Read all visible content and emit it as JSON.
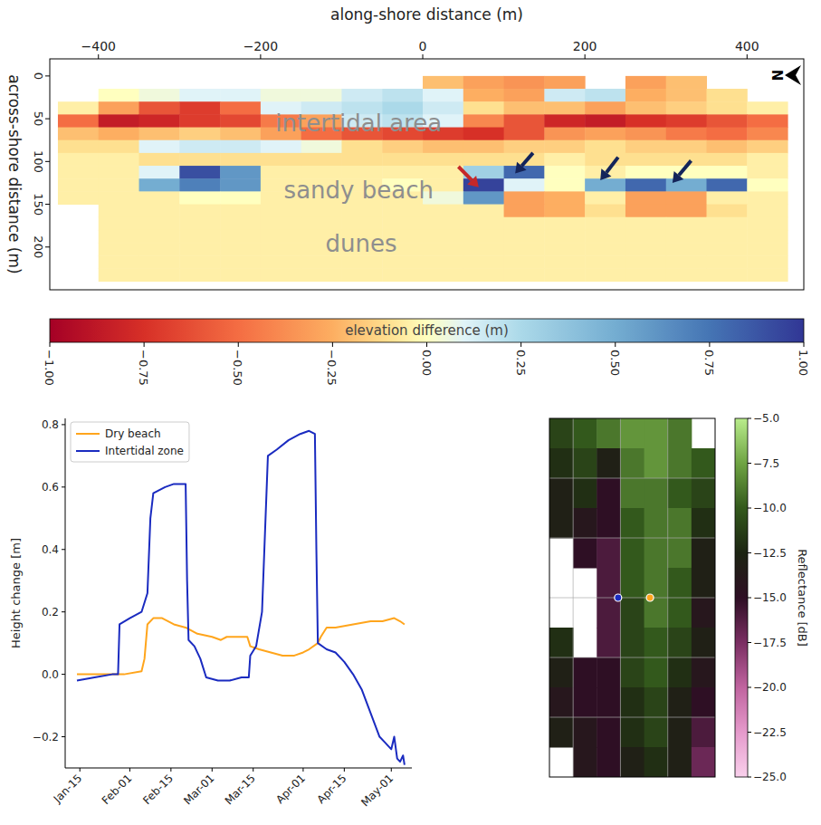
{
  "chart_data": [
    {
      "type": "map",
      "xlabel": "along-shore distance (m)",
      "ylabel": "across-shore distance (m)",
      "xlim": [
        -460,
        470
      ],
      "ylim": [
        -20,
        250
      ],
      "xticks": [
        {
          "value": -400,
          "label": "−400"
        },
        {
          "value": -200,
          "label": "−200"
        },
        0,
        200,
        400
      ],
      "yticks": [
        0,
        50,
        100,
        150,
        200
      ],
      "annotations": [
        "intertidal area",
        "sandy beach",
        "dunes"
      ],
      "north": "N",
      "cells": {
        "x_edges": [
          -450,
          -400,
          -350,
          -300,
          -250,
          -200,
          -150,
          -100,
          -50,
          0,
          50,
          100,
          150,
          200,
          250,
          300,
          350,
          400,
          450
        ],
        "y_edges": [
          0,
          15,
          30,
          45,
          60,
          75,
          90,
          105,
          120,
          135,
          150,
          165,
          180,
          195,
          210,
          225,
          240
        ],
        "values": [
          [
            null,
            null,
            null,
            null,
            null,
            null,
            null,
            null,
            null,
            -0.2,
            -0.3,
            -0.35,
            -0.3,
            null,
            -0.3,
            -0.2,
            null,
            null
          ],
          [
            null,
            0.0,
            0.05,
            0.1,
            0.1,
            0.05,
            0.05,
            0.15,
            0.2,
            0.1,
            -0.25,
            -0.3,
            0.15,
            0.2,
            -0.25,
            -0.2,
            -0.1,
            null
          ],
          [
            -0.05,
            -0.3,
            -0.6,
            -0.7,
            -0.5,
            0.1,
            0.15,
            0.2,
            0.25,
            0.15,
            -0.1,
            -0.2,
            -0.2,
            -0.3,
            -0.2,
            -0.15,
            -0.1,
            -0.05
          ],
          [
            -0.5,
            -0.85,
            -0.8,
            -0.7,
            -0.65,
            -0.45,
            -0.3,
            0.15,
            0.2,
            0.1,
            -0.4,
            -0.6,
            -0.8,
            -0.85,
            -0.75,
            -0.7,
            -0.6,
            -0.5
          ],
          [
            -0.2,
            -0.25,
            -0.2,
            -0.15,
            -0.2,
            -0.3,
            -0.5,
            -0.6,
            -0.65,
            -0.7,
            -0.75,
            -0.6,
            -0.35,
            -0.3,
            -0.35,
            -0.45,
            -0.5,
            -0.4
          ],
          [
            -0.1,
            -0.1,
            0.1,
            0.15,
            0.15,
            0.1,
            0.05,
            -0.1,
            -0.15,
            -0.2,
            -0.2,
            -0.15,
            -0.15,
            -0.1,
            -0.15,
            -0.15,
            -0.2,
            -0.15
          ],
          [
            -0.05,
            -0.05,
            -0.1,
            -0.1,
            -0.1,
            -0.1,
            -0.1,
            -0.1,
            -0.1,
            -0.1,
            -0.1,
            -0.1,
            -0.05,
            -0.1,
            -0.1,
            -0.1,
            -0.1,
            -0.05
          ],
          [
            -0.05,
            -0.05,
            0.1,
            0.9,
            0.6,
            -0.05,
            -0.05,
            -0.05,
            -0.05,
            -0.05,
            0.3,
            0.8,
            0.0,
            -0.05,
            0.0,
            0.0,
            0.0,
            -0.05
          ],
          [
            -0.05,
            -0.05,
            0.5,
            0.7,
            0.6,
            -0.05,
            -0.05,
            -0.05,
            0.0,
            -0.05,
            0.95,
            0.1,
            0.0,
            0.5,
            0.8,
            0.5,
            0.8,
            0.0
          ],
          [
            -0.05,
            -0.05,
            -0.05,
            0.0,
            0.0,
            -0.05,
            -0.05,
            -0.05,
            -0.05,
            0.05,
            0.6,
            -0.3,
            -0.25,
            -0.05,
            -0.3,
            -0.3,
            -0.05,
            -0.05
          ],
          [
            null,
            -0.05,
            -0.05,
            -0.05,
            -0.05,
            -0.05,
            -0.05,
            -0.05,
            -0.05,
            -0.05,
            -0.05,
            -0.3,
            -0.25,
            -0.1,
            -0.3,
            -0.3,
            -0.1,
            -0.05
          ],
          [
            null,
            -0.05,
            -0.05,
            -0.05,
            -0.05,
            -0.05,
            -0.05,
            -0.05,
            -0.05,
            -0.05,
            -0.05,
            -0.05,
            -0.05,
            -0.05,
            -0.05,
            -0.05,
            -0.05,
            -0.05
          ],
          [
            null,
            -0.05,
            -0.05,
            -0.05,
            -0.05,
            -0.05,
            -0.05,
            -0.05,
            -0.05,
            -0.05,
            -0.05,
            -0.05,
            -0.05,
            -0.05,
            -0.05,
            -0.05,
            -0.05,
            -0.05
          ],
          [
            null,
            -0.05,
            -0.05,
            -0.05,
            -0.05,
            -0.05,
            -0.05,
            -0.05,
            -0.05,
            -0.05,
            -0.05,
            -0.05,
            -0.05,
            -0.05,
            -0.05,
            -0.05,
            -0.05,
            -0.05
          ],
          [
            null,
            -0.05,
            -0.05,
            -0.05,
            -0.05,
            -0.05,
            -0.05,
            -0.05,
            -0.05,
            -0.05,
            -0.05,
            -0.05,
            -0.05,
            -0.05,
            -0.05,
            -0.05,
            -0.05,
            -0.05
          ],
          [
            null,
            -0.05,
            -0.05,
            -0.05,
            -0.05,
            -0.05,
            -0.05,
            -0.05,
            -0.05,
            -0.05,
            -0.05,
            -0.05,
            -0.05,
            -0.05,
            -0.05,
            -0.05,
            -0.05,
            -0.05
          ]
        ]
      },
      "colorbar": {
        "label": "elevation difference (m)",
        "range": [
          -1,
          1
        ],
        "ticks": [
          {
            "value": -1,
            "label": "−1.00"
          },
          {
            "value": -0.75,
            "label": "−0.75"
          },
          {
            "value": -0.5,
            "label": "−0.50"
          },
          {
            "value": -0.25,
            "label": "−0.25"
          },
          {
            "value": 0,
            "label": "0.00"
          },
          {
            "value": 0.25,
            "label": "0.25"
          },
          {
            "value": 0.5,
            "label": "0.50"
          },
          {
            "value": 0.75,
            "label": "0.75"
          },
          {
            "value": 1,
            "label": "1.00"
          }
        ]
      }
    },
    {
      "type": "line",
      "ylabel": "Height change [m]",
      "xlim": [
        10,
        128
      ],
      "ylim": [
        -0.3,
        0.82
      ],
      "xticks": [
        {
          "value": 15,
          "label": "Jan-15"
        },
        {
          "value": 32,
          "label": "Feb-01"
        },
        {
          "value": 46,
          "label": "Feb-15"
        },
        {
          "value": 60,
          "label": "Mar-01"
        },
        {
          "value": 74,
          "label": "Mar-15"
        },
        {
          "value": 91,
          "label": "Apr-01"
        },
        {
          "value": 105,
          "label": "Apr-15"
        },
        {
          "value": 121,
          "label": "May-01"
        }
      ],
      "yticks": [
        {
          "value": -0.2,
          "label": "−0.2"
        },
        {
          "value": 0,
          "label": "0.0"
        },
        0.2,
        0.4,
        0.6,
        0.8
      ],
      "legend": "upper left",
      "grid": false,
      "series": [
        {
          "name": "Dry beach",
          "color": "#ffa51c",
          "x": [
            14,
            20,
            30,
            36,
            37,
            38,
            40,
            43,
            47,
            51,
            55,
            60,
            63,
            65,
            70,
            72,
            73,
            76,
            80,
            84,
            88,
            91,
            93,
            96,
            97,
            99,
            102,
            108,
            114,
            118,
            122,
            124,
            125.5
          ],
          "values": [
            0.0,
            0.0,
            0.0,
            0.01,
            0.05,
            0.16,
            0.18,
            0.18,
            0.16,
            0.15,
            0.13,
            0.12,
            0.11,
            0.12,
            0.12,
            0.12,
            0.09,
            0.08,
            0.07,
            0.06,
            0.06,
            0.07,
            0.08,
            0.1,
            0.12,
            0.15,
            0.15,
            0.16,
            0.17,
            0.17,
            0.18,
            0.17,
            0.16
          ]
        },
        {
          "name": "Intertidal zone",
          "color": "#1a2bc0",
          "x": [
            14,
            20,
            26,
            28,
            28.5,
            32,
            36,
            38,
            39,
            40,
            44,
            47,
            51,
            51.5,
            52,
            54,
            56,
            58,
            62,
            66,
            70,
            72.5,
            73,
            75,
            77,
            78,
            79,
            82,
            86,
            90,
            93,
            95,
            95.5,
            96,
            99,
            102,
            105,
            108,
            111,
            113,
            115,
            117,
            119,
            121,
            122,
            123,
            124,
            125,
            125.5
          ],
          "values": [
            -0.02,
            -0.01,
            0.0,
            0.0,
            0.16,
            0.18,
            0.2,
            0.26,
            0.5,
            0.58,
            0.6,
            0.61,
            0.61,
            0.3,
            0.11,
            0.09,
            0.05,
            -0.01,
            -0.02,
            -0.02,
            -0.01,
            -0.01,
            0.06,
            0.09,
            0.2,
            0.45,
            0.7,
            0.72,
            0.75,
            0.77,
            0.78,
            0.77,
            0.4,
            0.1,
            0.08,
            0.07,
            0.04,
            0.0,
            -0.05,
            -0.1,
            -0.15,
            -0.2,
            -0.22,
            -0.24,
            -0.2,
            -0.27,
            -0.28,
            -0.26,
            -0.29
          ]
        }
      ]
    },
    {
      "type": "map",
      "tick_labels": false,
      "grid": true,
      "xlim": [
        0,
        7
      ],
      "ylim": [
        0,
        12
      ],
      "xticks": [
        1,
        3,
        5
      ],
      "yticks": [
        2,
        4,
        6,
        8,
        10
      ],
      "cells": {
        "values": [
          [
            -11,
            -10,
            -9,
            -8,
            -8,
            -9,
            null
          ],
          [
            -12,
            -11,
            -13,
            -9,
            -8,
            -9,
            -10
          ],
          [
            -13,
            -12,
            -15,
            -9,
            -9,
            -10,
            -11
          ],
          [
            -13,
            -14,
            -15,
            -10,
            -9,
            -9,
            -12
          ],
          [
            null,
            -15,
            -16,
            -10,
            -9,
            -9,
            -13
          ],
          [
            null,
            null,
            -16,
            -10,
            -9,
            -10,
            -13
          ],
          [
            null,
            null,
            -16,
            -11,
            -9,
            -10,
            -14
          ],
          [
            -12,
            null,
            -16,
            -11,
            -10,
            -11,
            -13
          ],
          [
            -13,
            -15,
            -15,
            -11,
            -10,
            -12,
            -14
          ],
          [
            -14,
            -15,
            -15,
            -12,
            -11,
            -13,
            -15
          ],
          [
            -13,
            -14,
            -15,
            -12,
            -11,
            -13,
            -16
          ],
          [
            null,
            -14,
            -15,
            -13,
            -12,
            -13,
            -17
          ]
        ]
      },
      "points": [
        {
          "x": 2.9,
          "y": 6.0,
          "color": "#1a2bc0"
        },
        {
          "x": 4.25,
          "y": 6.0,
          "color": "#ffa51c"
        }
      ],
      "colorbar": {
        "label": "Reflectance [dB]",
        "range": [
          -25,
          -5
        ],
        "ticks": [
          {
            "value": -5,
            "label": "−5.0"
          },
          {
            "value": -7.5,
            "label": "−7.5"
          },
          {
            "value": -10,
            "label": "−10.0"
          },
          {
            "value": -12.5,
            "label": "−12.5"
          },
          {
            "value": -15,
            "label": "−15.0"
          },
          {
            "value": -17.5,
            "label": "−17.5"
          },
          {
            "value": -20,
            "label": "−20.0"
          },
          {
            "value": -22.5,
            "label": "−22.5"
          },
          {
            "value": -25,
            "label": "−25.0"
          }
        ]
      }
    }
  ]
}
